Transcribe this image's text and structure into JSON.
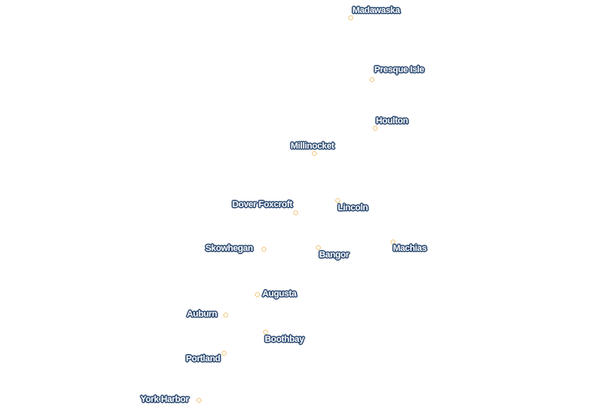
{
  "colors": {
    "background": "#ffffff",
    "dot_stroke": "#f2c77c",
    "label_fill": "#ffffff",
    "label_halo": "#2c4a72"
  },
  "cities": [
    {
      "name": "Madawaska"
    },
    {
      "name": "Presque Isle"
    },
    {
      "name": "Houlton"
    },
    {
      "name": "Millinocket"
    },
    {
      "name": "Dover Foxcroft"
    },
    {
      "name": "Lincoln"
    },
    {
      "name": "Skowhegan"
    },
    {
      "name": "Bangor"
    },
    {
      "name": "Machias"
    },
    {
      "name": "Augusta"
    },
    {
      "name": "Auburn"
    },
    {
      "name": "Boothbay"
    },
    {
      "name": "Portland"
    },
    {
      "name": "York Harbor"
    }
  ]
}
